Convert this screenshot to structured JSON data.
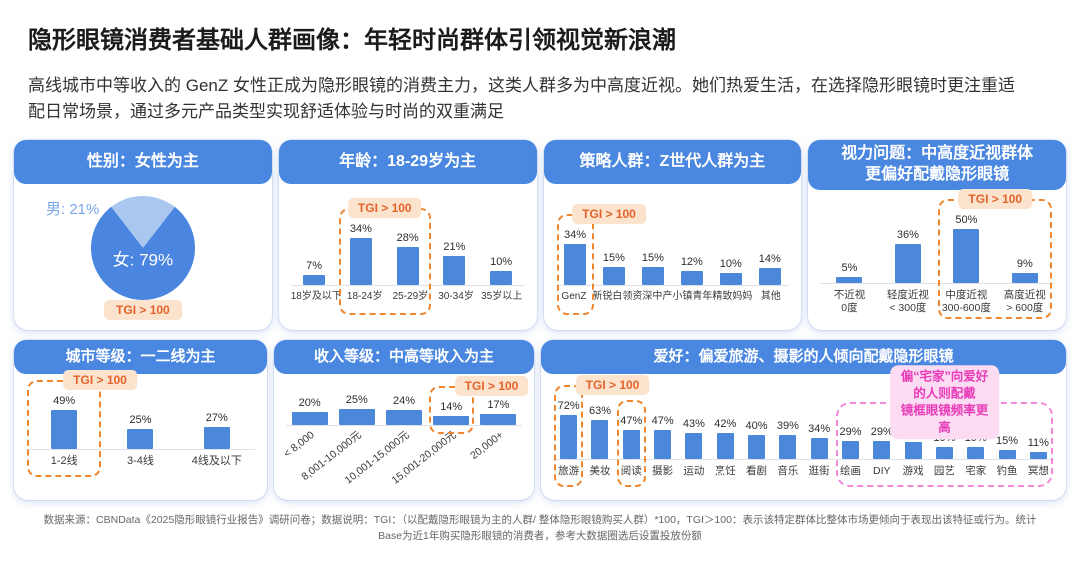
{
  "title": "隐形眼镜消费者基础人群画像：年轻时尚群体引领视觉新浪潮",
  "subtitle": "高线城市中等收入的 GenZ 女性正成为隐形眼镜的消费主力，这类人群多为中高度近视。她们热爱生活，在选择隐形眼镜时更注重适配日常场景，通过多元产品类型实现舒适体验与时尚的双重满足",
  "footer": "数据来源：CBNData《2025隐形眼镜行业报告》调研问卷；数据说明：TGI：（以配戴隐形眼镜为主的人群/ 整体隐形眼镜购买人群）*100，TGI＞100：表示该特定群体比整体市场更倾向于表现出该特征或行为。统计Base为近1年购买隐形眼镜的消费者，参考大数据圈选后设置投放份额",
  "tgi_badge_label": "TGI > 100",
  "colors": {
    "header_blue": "#4a87e0",
    "bar_blue": "#4c88d9",
    "pie_main": "#4a86e0",
    "pie_light": "#a9c7ef",
    "male_label": "#7aa7e8",
    "tgi_bg": "#fbe3cd",
    "tgi_text": "#e4632b",
    "hl_orange": "#f0872f",
    "pink_border": "#f387d8",
    "pink_bg": "#fbdcf2",
    "pink_text": "#e83bb8"
  },
  "chart_data": [
    {
      "id": "gender",
      "row": 1,
      "type": "pie",
      "title": "性别：女性为主",
      "slices": [
        {
          "label": "女",
          "value": 79,
          "display": "女: 79%"
        },
        {
          "label": "男",
          "value": 21,
          "display": "男: 21%"
        }
      ],
      "badge": "TGI > 100"
    },
    {
      "id": "age",
      "row": 1,
      "type": "bar",
      "title": "年龄：18-29岁为主",
      "categories": [
        "18岁及以下",
        "18-24岁",
        "25-29岁",
        "30-34岁",
        "35岁以上"
      ],
      "values": [
        7,
        34,
        28,
        21,
        10
      ],
      "unit": "%",
      "ylim": [
        0,
        35
      ],
      "highlights": [
        {
          "from": 1,
          "to": 2,
          "style": "orange",
          "badge": "TGI > 100",
          "badge_dx": 0
        }
      ]
    },
    {
      "id": "strategy",
      "row": 1,
      "type": "bar",
      "title": "策略人群：Z世代人群为主",
      "categories": [
        "GenZ",
        "新锐白领",
        "资深中产",
        "小镇青年",
        "精致妈妈",
        "其他"
      ],
      "values": [
        34,
        15,
        15,
        12,
        10,
        14
      ],
      "unit": "%",
      "ylim": [
        0,
        35
      ],
      "highlights": [
        {
          "from": 0,
          "to": 0,
          "style": "orange",
          "badge": "TGI > 100",
          "badge_dx": 34
        }
      ]
    },
    {
      "id": "vision",
      "row": 1,
      "type": "bar",
      "title": "视力问题：中高度近视群体\n更偏好配戴隐形眼镜",
      "categories": [
        "不近视\n0度",
        "轻度近视\n< 300度",
        "中度近视\n300-600度",
        "高度近视\n> 600度"
      ],
      "values": [
        5,
        36,
        50,
        9
      ],
      "unit": "%",
      "ylim": [
        0,
        50
      ],
      "highlights": [
        {
          "from": 2,
          "to": 3,
          "style": "orange",
          "badge": "TGI > 100",
          "badge_dx": 0
        }
      ]
    },
    {
      "id": "city",
      "row": 2,
      "type": "bar",
      "title": "城市等级：一二线为主",
      "categories": [
        "1-2线",
        "3-4线",
        "4线及以下"
      ],
      "values": [
        49,
        25,
        27
      ],
      "unit": "%",
      "ylim": [
        0,
        50
      ],
      "highlights": [
        {
          "from": 0,
          "to": 0,
          "style": "orange",
          "badge": "TGI > 100",
          "badge_dx": 36
        }
      ]
    },
    {
      "id": "income",
      "row": 2,
      "type": "bar",
      "title": "收入等级：中高等收入为主",
      "categories": [
        "< 8,000",
        "8,001-10,000元",
        "10,001-15,000元",
        "15,001-20,000元",
        "20,000+"
      ],
      "values": [
        20,
        25,
        24,
        14,
        17
      ],
      "unit": "%",
      "ylim": [
        0,
        25
      ],
      "rotated_labels": true,
      "highlights": [
        {
          "from": 3,
          "to": 3,
          "style": "orange",
          "badge": "TGI > 100",
          "badge_dx": 40,
          "short": true
        }
      ]
    },
    {
      "id": "hobbies",
      "row": 2,
      "type": "bar",
      "title": "爱好：偏爱旅游、摄影的人倾向配戴隐形眼镜",
      "categories": [
        "旅游",
        "美妆",
        "阅读",
        "摄影",
        "运动",
        "烹饪",
        "看剧",
        "音乐",
        "逛街",
        "绘画",
        "DIY",
        "游戏",
        "园艺",
        "宅家",
        "钓鱼",
        "冥想"
      ],
      "values": [
        72,
        63,
        47,
        47,
        43,
        42,
        40,
        39,
        34,
        29,
        29,
        28,
        19,
        19,
        15,
        11
      ],
      "unit": "%",
      "ylim": [
        0,
        75
      ],
      "highlights": [
        {
          "from": 0,
          "to": 0,
          "style": "orange",
          "badge": "TGI > 100",
          "badge_dx": 44
        },
        {
          "from": 2,
          "to": 2,
          "style": "orange"
        },
        {
          "from": 9,
          "to": 15,
          "style": "pink",
          "badge": "偏“宅家”向爱好的人则配戴\n镜框眼镜频率更高",
          "badge_dx": 0
        }
      ]
    }
  ]
}
